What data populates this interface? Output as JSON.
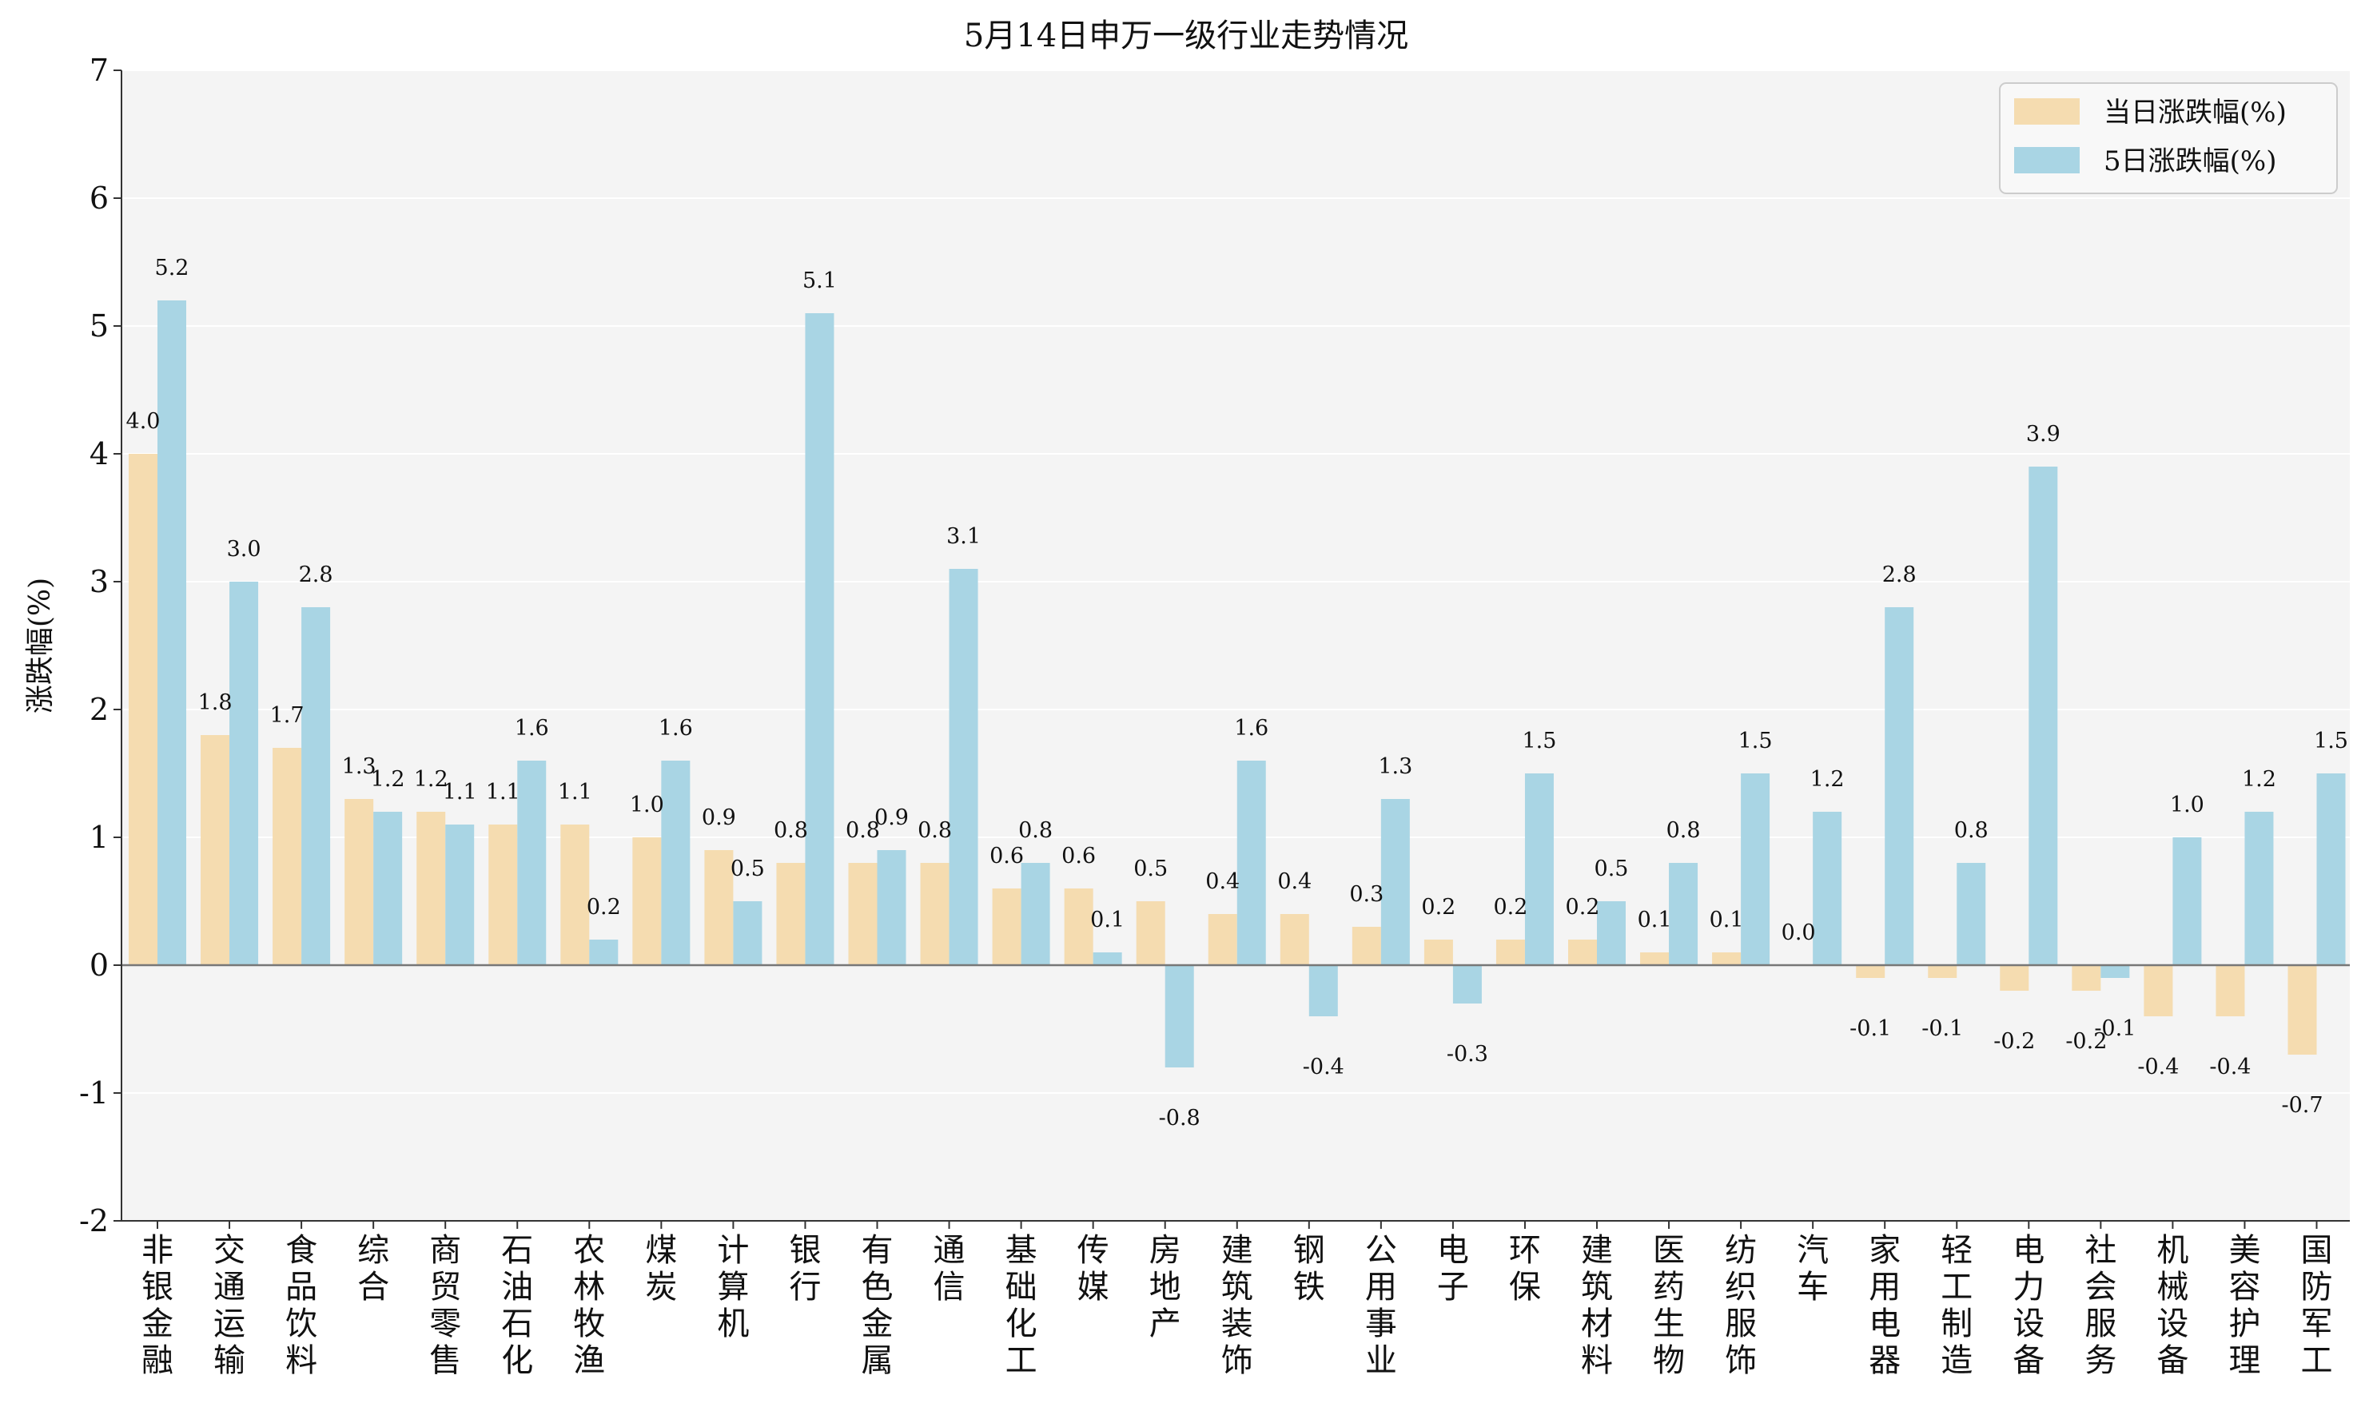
{
  "chart_data": {
    "type": "bar",
    "title": "5月14日申万一级行业走势情况",
    "xlabel": "",
    "ylabel": "涨跌幅(%)",
    "ylim": [
      -2,
      7
    ],
    "yticks": [
      -2,
      -1,
      0,
      1,
      2,
      3,
      4,
      5,
      6,
      7
    ],
    "grid": true,
    "legend_position": "top-right",
    "categories": [
      "非银金融",
      "交通运输",
      "食品饮料",
      "综合",
      "商贸零售",
      "石油石化",
      "农林牧渔",
      "煤炭",
      "计算机",
      "银行",
      "有色金属",
      "通信",
      "基础化工",
      "传媒",
      "房地产",
      "建筑装饰",
      "钢铁",
      "公用事业",
      "电子",
      "环保",
      "建筑材料",
      "医药生物",
      "纺织服饰",
      "汽车",
      "家用电器",
      "轻工制造",
      "电力设备",
      "社会服务",
      "机械设备",
      "美容护理",
      "国防军工"
    ],
    "series": [
      {
        "name": "当日涨跌幅(%)",
        "color": "#f5dcb0",
        "values": [
          4.0,
          1.8,
          1.7,
          1.3,
          1.2,
          1.1,
          1.1,
          1.0,
          0.9,
          0.8,
          0.8,
          0.8,
          0.6,
          0.6,
          0.5,
          0.4,
          0.4,
          0.3,
          0.2,
          0.2,
          0.2,
          0.1,
          0.1,
          0.0,
          -0.1,
          -0.1,
          -0.2,
          -0.2,
          -0.4,
          -0.4,
          -0.7
        ]
      },
      {
        "name": "5日涨跌幅(%)",
        "color": "#a9d5e4",
        "values": [
          5.2,
          3.0,
          2.8,
          1.2,
          1.1,
          1.6,
          0.2,
          1.6,
          0.5,
          5.1,
          0.9,
          3.1,
          0.8,
          0.1,
          -0.8,
          1.6,
          -0.4,
          1.3,
          -0.3,
          1.5,
          0.5,
          0.8,
          1.5,
          1.2,
          2.8,
          0.8,
          3.9,
          -0.1,
          1.0,
          1.2,
          1.5
        ]
      }
    ]
  }
}
